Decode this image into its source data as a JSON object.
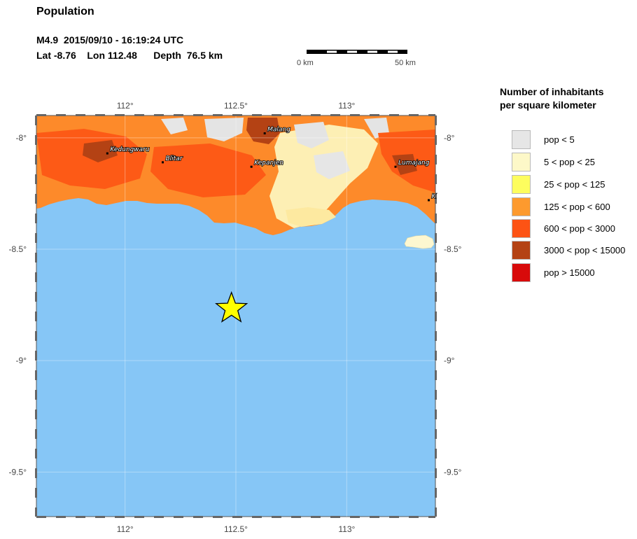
{
  "title": "Population",
  "event": {
    "line1": "M4.9  2015/09/10 - 16:19:24 UTC",
    "line2": "Lat -8.76    Lon 112.48      Depth  76.5 km",
    "epicenter": {
      "lon": 112.48,
      "lat": -8.76
    }
  },
  "scale": {
    "left_label": "0 km",
    "right_label": "50 km"
  },
  "legend": {
    "title_line1": "Number of inhabitants",
    "title_line2": "per square kilometer",
    "items": [
      {
        "label": "pop < 5",
        "color": "#e6e6e6"
      },
      {
        "label": "5 < pop < 25",
        "color": "#fdf8c8"
      },
      {
        "label": "25 < pop < 125",
        "color": "#fdfd5e"
      },
      {
        "label": "125 < pop < 600",
        "color": "#fd9a2e"
      },
      {
        "label": "600 < pop < 3000",
        "color": "#fd5314"
      },
      {
        "label": "3000 < pop < 15000",
        "color": "#b44214"
      },
      {
        "label": "pop > 15000",
        "color": "#d80a0a"
      }
    ]
  },
  "map": {
    "water_color": "#86c6f6",
    "lon_range": [
      111.6,
      113.4
    ],
    "lat_range": [
      -9.7,
      -7.9
    ],
    "lon_ticks": [
      {
        "value": 112.0,
        "label": "112°"
      },
      {
        "value": 112.5,
        "label": "112.5°"
      },
      {
        "value": 113.0,
        "label": "113°"
      }
    ],
    "lat_ticks": [
      {
        "value": -8.0,
        "label": "-8°"
      },
      {
        "value": -8.5,
        "label": "-8.5°"
      },
      {
        "value": -9.0,
        "label": "-9°"
      },
      {
        "value": -9.5,
        "label": "-9.5°"
      }
    ],
    "cities": [
      {
        "name": "Kedungwaru",
        "lon": 111.92,
        "lat": -8.07
      },
      {
        "name": "Blitar",
        "lon": 112.17,
        "lat": -8.11
      },
      {
        "name": "Malang",
        "lon": 112.63,
        "lat": -7.98
      },
      {
        "name": "Kepanjen",
        "lon": 112.57,
        "lat": -8.13
      },
      {
        "name": "Lumajang",
        "lon": 113.22,
        "lat": -8.13
      },
      {
        "name": "K",
        "lon": 113.37,
        "lat": -8.28
      }
    ]
  }
}
